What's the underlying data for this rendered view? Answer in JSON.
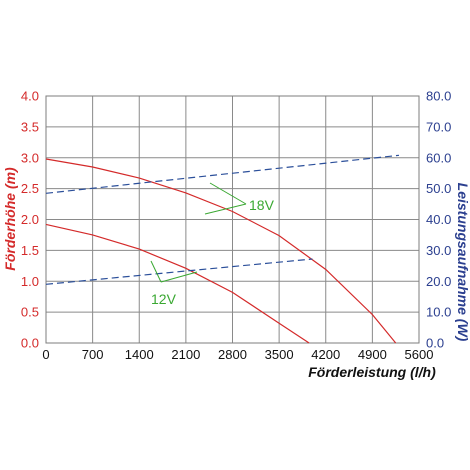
{
  "chart_data": {
    "type": "line",
    "title": "",
    "xlabel": "Förderleistung (l/h)",
    "ylabel_left": "Förderhöhe (m)",
    "ylabel_right": "Leistungsaufnahme (W)",
    "xlim": [
      0,
      5600
    ],
    "ylim_left": [
      0,
      4.0
    ],
    "ylim_right": [
      0,
      80.0
    ],
    "x_ticks": [
      "0",
      "700",
      "1400",
      "2100",
      "2800",
      "3500",
      "4200",
      "4900",
      "5600"
    ],
    "y_left_ticks": [
      "0.0",
      "0.5",
      "1.0",
      "1.5",
      "2.0",
      "2.5",
      "3.0",
      "3.5",
      "4.0"
    ],
    "y_right_ticks": [
      "0.0",
      "10.0",
      "20.0",
      "30.0",
      "40.0",
      "50.0",
      "60.0",
      "70.0",
      "80.0"
    ],
    "grid": true,
    "annotations": [
      "18V",
      "12V"
    ],
    "colors": {
      "head": "#d42a2a",
      "power": "#2b4f9a",
      "annotation": "#3aa832",
      "grid": "#8a8a8a"
    },
    "series": [
      {
        "axis": "left",
        "style": "solid",
        "color": "#d42a2a",
        "x": [
          0,
          700,
          1400,
          2100,
          2800,
          3500,
          4200,
          4900,
          5250
        ],
        "y": [
          2.98,
          2.85,
          2.67,
          2.43,
          2.13,
          1.74,
          1.19,
          0.46,
          0.0
        ]
      },
      {
        "axis": "left",
        "style": "solid",
        "color": "#d42a2a",
        "x": [
          0,
          700,
          1400,
          2100,
          2800,
          3500,
          3950
        ],
        "y": [
          1.92,
          1.75,
          1.52,
          1.21,
          0.82,
          0.32,
          0.0
        ]
      },
      {
        "axis": "right",
        "style": "dashed",
        "color": "#2b4f9a",
        "x": [
          0,
          5300
        ],
        "y": [
          48.5,
          60.8
        ]
      },
      {
        "axis": "right",
        "style": "dashed",
        "color": "#2b4f9a",
        "x": [
          0,
          4000
        ],
        "y": [
          19.0,
          27.2
        ]
      }
    ]
  }
}
